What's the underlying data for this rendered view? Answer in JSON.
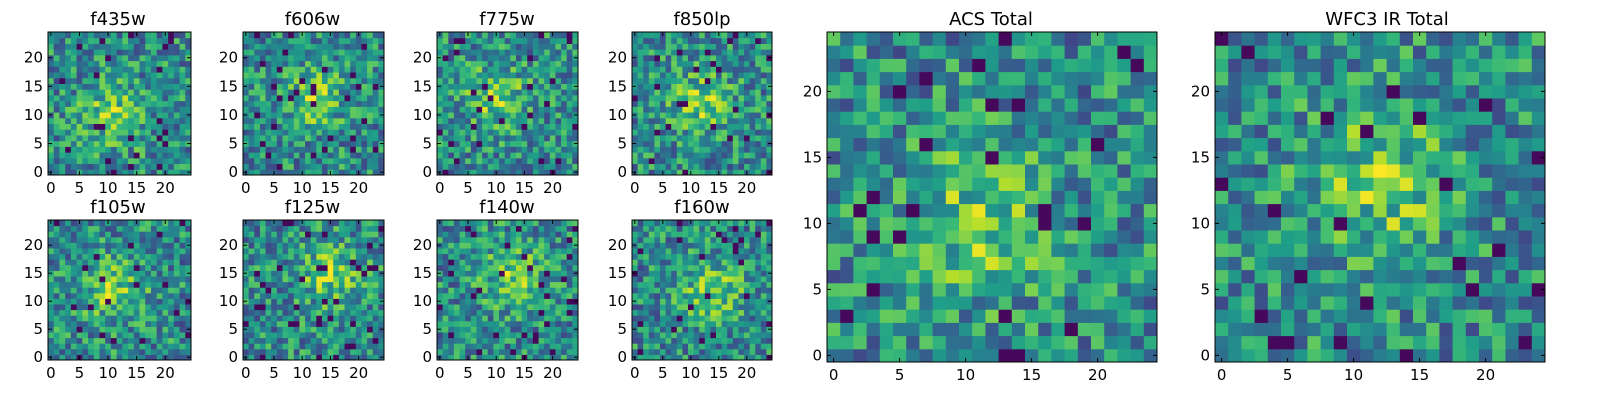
{
  "figure": {
    "background": "#ffffff"
  },
  "chart_data": [
    {
      "type": "heatmap",
      "title": "f435w",
      "grid": [
        25,
        25
      ],
      "colormap": "viridis",
      "xlim": [
        -0.5,
        24.5
      ],
      "ylim": [
        -0.5,
        24.5
      ],
      "xticks": [
        0,
        5,
        10,
        15,
        20
      ],
      "yticks": [
        0,
        5,
        10,
        15,
        20
      ],
      "legend": "none",
      "grid_lines": false
    },
    {
      "type": "heatmap",
      "title": "f606w",
      "grid": [
        25,
        25
      ],
      "colormap": "viridis",
      "xlim": [
        -0.5,
        24.5
      ],
      "ylim": [
        -0.5,
        24.5
      ],
      "xticks": [
        0,
        5,
        10,
        15,
        20
      ],
      "yticks": [
        0,
        5,
        10,
        15,
        20
      ],
      "legend": "none",
      "grid_lines": false
    },
    {
      "type": "heatmap",
      "title": "f775w",
      "grid": [
        25,
        25
      ],
      "colormap": "viridis",
      "xlim": [
        -0.5,
        24.5
      ],
      "ylim": [
        -0.5,
        24.5
      ],
      "xticks": [
        0,
        5,
        10,
        15,
        20
      ],
      "yticks": [
        0,
        5,
        10,
        15,
        20
      ],
      "legend": "none",
      "grid_lines": false
    },
    {
      "type": "heatmap",
      "title": "f850lp",
      "grid": [
        25,
        25
      ],
      "colormap": "viridis",
      "xlim": [
        -0.5,
        24.5
      ],
      "ylim": [
        -0.5,
        24.5
      ],
      "xticks": [
        0,
        5,
        10,
        15,
        20
      ],
      "yticks": [
        0,
        5,
        10,
        15,
        20
      ],
      "legend": "none",
      "grid_lines": false
    },
    {
      "type": "heatmap",
      "title": "f105w",
      "grid": [
        25,
        25
      ],
      "colormap": "viridis",
      "xlim": [
        -0.5,
        24.5
      ],
      "ylim": [
        -0.5,
        24.5
      ],
      "xticks": [
        0,
        5,
        10,
        15,
        20
      ],
      "yticks": [
        0,
        5,
        10,
        15,
        20
      ],
      "legend": "none",
      "grid_lines": false
    },
    {
      "type": "heatmap",
      "title": "f125w",
      "grid": [
        25,
        25
      ],
      "colormap": "viridis",
      "xlim": [
        -0.5,
        24.5
      ],
      "ylim": [
        -0.5,
        24.5
      ],
      "xticks": [
        0,
        5,
        10,
        15,
        20
      ],
      "yticks": [
        0,
        5,
        10,
        15,
        20
      ],
      "legend": "none",
      "grid_lines": false
    },
    {
      "type": "heatmap",
      "title": "f140w",
      "grid": [
        25,
        25
      ],
      "colormap": "viridis",
      "xlim": [
        -0.5,
        24.5
      ],
      "ylim": [
        -0.5,
        24.5
      ],
      "xticks": [
        0,
        5,
        10,
        15,
        20
      ],
      "yticks": [
        0,
        5,
        10,
        15,
        20
      ],
      "legend": "none",
      "grid_lines": false
    },
    {
      "type": "heatmap",
      "title": "f160w",
      "grid": [
        25,
        25
      ],
      "colormap": "viridis",
      "xlim": [
        -0.5,
        24.5
      ],
      "ylim": [
        -0.5,
        24.5
      ],
      "xticks": [
        0,
        5,
        10,
        15,
        20
      ],
      "yticks": [
        0,
        5,
        10,
        15,
        20
      ],
      "legend": "none",
      "grid_lines": false
    },
    {
      "type": "heatmap",
      "title": "ACS Total",
      "grid": [
        25,
        25
      ],
      "colormap": "viridis",
      "xlim": [
        -0.5,
        24.5
      ],
      "ylim": [
        -0.5,
        24.5
      ],
      "xticks": [
        0,
        5,
        10,
        15,
        20
      ],
      "yticks": [
        0,
        5,
        10,
        15,
        20
      ],
      "legend": "none",
      "grid_lines": false
    },
    {
      "type": "heatmap",
      "title": "WFC3 IR Total",
      "grid": [
        25,
        25
      ],
      "colormap": "viridis",
      "xlim": [
        -0.5,
        24.5
      ],
      "ylim": [
        -0.5,
        24.5
      ],
      "xticks": [
        0,
        5,
        10,
        15,
        20
      ],
      "yticks": [
        0,
        5,
        10,
        15,
        20
      ],
      "legend": "none",
      "grid_lines": false
    }
  ]
}
